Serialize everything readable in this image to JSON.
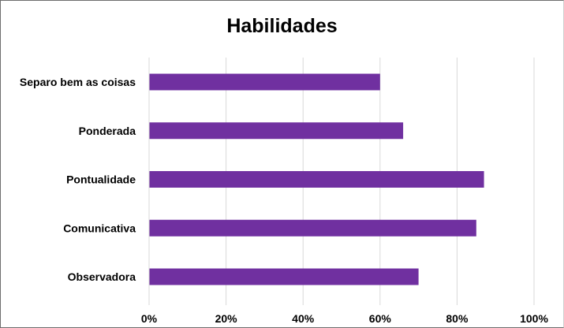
{
  "chart_data": {
    "type": "bar",
    "orientation": "horizontal",
    "title": "Habilidades",
    "categories": [
      "Separo bem as coisas",
      "Ponderada",
      "Pontualidade",
      "Comunicativa",
      "Observadora"
    ],
    "values": [
      0.6,
      0.66,
      0.87,
      0.85,
      0.7
    ],
    "xlim": [
      0,
      1
    ],
    "xticks": [
      "0%",
      "20%",
      "40%",
      "60%",
      "80%",
      "100%"
    ],
    "xlabel": "",
    "ylabel": "",
    "grid": "vertical",
    "legend": "none",
    "bar_color": "#7030A0",
    "grid_color": "#d9d9d9"
  }
}
